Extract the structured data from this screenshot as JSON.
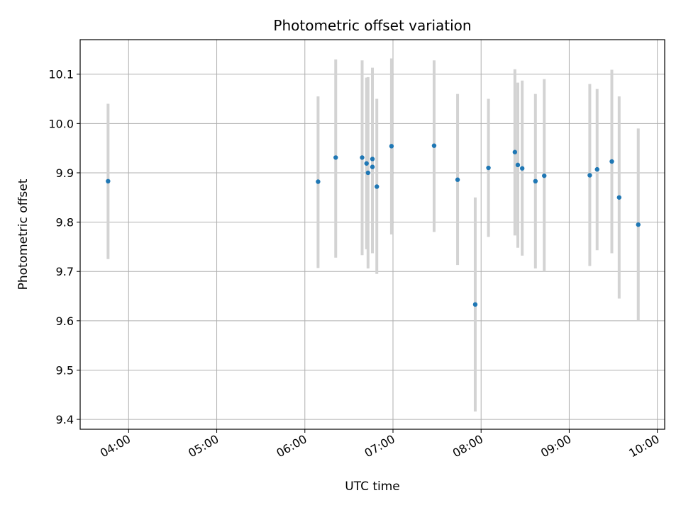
{
  "chart_data": {
    "type": "scatter",
    "title": "Photometric offset variation",
    "xlabel": "UTC time",
    "ylabel": "Photometric offset",
    "x_unit": "UTC hh:mm",
    "xlim": [
      "03:27",
      "10:05"
    ],
    "ylim": [
      9.38,
      10.17
    ],
    "x_ticks": [
      "04:00",
      "05:00",
      "06:00",
      "07:00",
      "08:00",
      "09:00",
      "10:00"
    ],
    "y_ticks": [
      9.4,
      9.5,
      9.6,
      9.7,
      9.8,
      9.9,
      10.0,
      10.1
    ],
    "grid": true,
    "legend": "none",
    "colors": {
      "point": "#1f77b4",
      "errorbar": "#d3d3d3",
      "grid": "#b0b0b0"
    },
    "points": [
      {
        "x": "03:46",
        "y": 9.883,
        "lo": 9.725,
        "hi": 10.04
      },
      {
        "x": "06:09",
        "y": 9.882,
        "lo": 9.707,
        "hi": 10.055
      },
      {
        "x": "06:21",
        "y": 9.931,
        "lo": 9.728,
        "hi": 10.13
      },
      {
        "x": "06:39",
        "y": 9.931,
        "lo": 9.733,
        "hi": 10.128
      },
      {
        "x": "06:42",
        "y": 9.919,
        "lo": 9.745,
        "hi": 10.093
      },
      {
        "x": "06:43",
        "y": 9.9,
        "lo": 9.706,
        "hi": 10.094
      },
      {
        "x": "06:46",
        "y": 9.928,
        "lo": 9.75,
        "hi": 10.105
      },
      {
        "x": "06:46",
        "y": 9.912,
        "lo": 9.737,
        "hi": 10.113
      },
      {
        "x": "06:49",
        "y": 9.872,
        "lo": 9.695,
        "hi": 10.05
      },
      {
        "x": "06:59",
        "y": 9.954,
        "lo": 9.775,
        "hi": 10.132
      },
      {
        "x": "07:28",
        "y": 9.955,
        "lo": 9.78,
        "hi": 10.128
      },
      {
        "x": "07:44",
        "y": 9.886,
        "lo": 9.713,
        "hi": 10.06
      },
      {
        "x": "07:56",
        "y": 9.633,
        "lo": 9.416,
        "hi": 9.85
      },
      {
        "x": "08:05",
        "y": 9.91,
        "lo": 9.77,
        "hi": 10.05
      },
      {
        "x": "08:23",
        "y": 9.942,
        "lo": 9.773,
        "hi": 10.11
      },
      {
        "x": "08:25",
        "y": 9.916,
        "lo": 9.748,
        "hi": 10.083
      },
      {
        "x": "08:28",
        "y": 9.909,
        "lo": 9.732,
        "hi": 10.087
      },
      {
        "x": "08:37",
        "y": 9.883,
        "lo": 9.706,
        "hi": 10.06
      },
      {
        "x": "08:43",
        "y": 9.894,
        "lo": 9.7,
        "hi": 10.09
      },
      {
        "x": "09:14",
        "y": 9.895,
        "lo": 9.711,
        "hi": 10.08
      },
      {
        "x": "09:19",
        "y": 9.907,
        "lo": 9.743,
        "hi": 10.07
      },
      {
        "x": "09:29",
        "y": 9.923,
        "lo": 9.737,
        "hi": 10.109
      },
      {
        "x": "09:34",
        "y": 9.85,
        "lo": 9.645,
        "hi": 10.055
      },
      {
        "x": "09:47",
        "y": 9.795,
        "lo": 9.6,
        "hi": 9.99
      }
    ]
  }
}
